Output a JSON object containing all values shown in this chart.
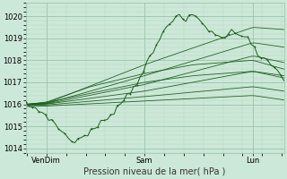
{
  "bg_color": "#cce8d8",
  "grid_major_color": "#99c4aa",
  "grid_minor_color": "#b8d8c4",
  "line_color": "#1a5c1a",
  "ylim": [
    1013.8,
    1020.6
  ],
  "yticks": [
    1014,
    1015,
    1016,
    1017,
    1018,
    1019,
    1020
  ],
  "xtick_labels": [
    "VenDim",
    "Sam",
    "Lun"
  ],
  "xtick_positions": [
    0.08,
    0.46,
    0.88
  ],
  "xlabel": "Pression niveau de la mer( hPa )",
  "xlabel_fontsize": 7,
  "ytick_fontsize": 6,
  "xtick_fontsize": 6
}
